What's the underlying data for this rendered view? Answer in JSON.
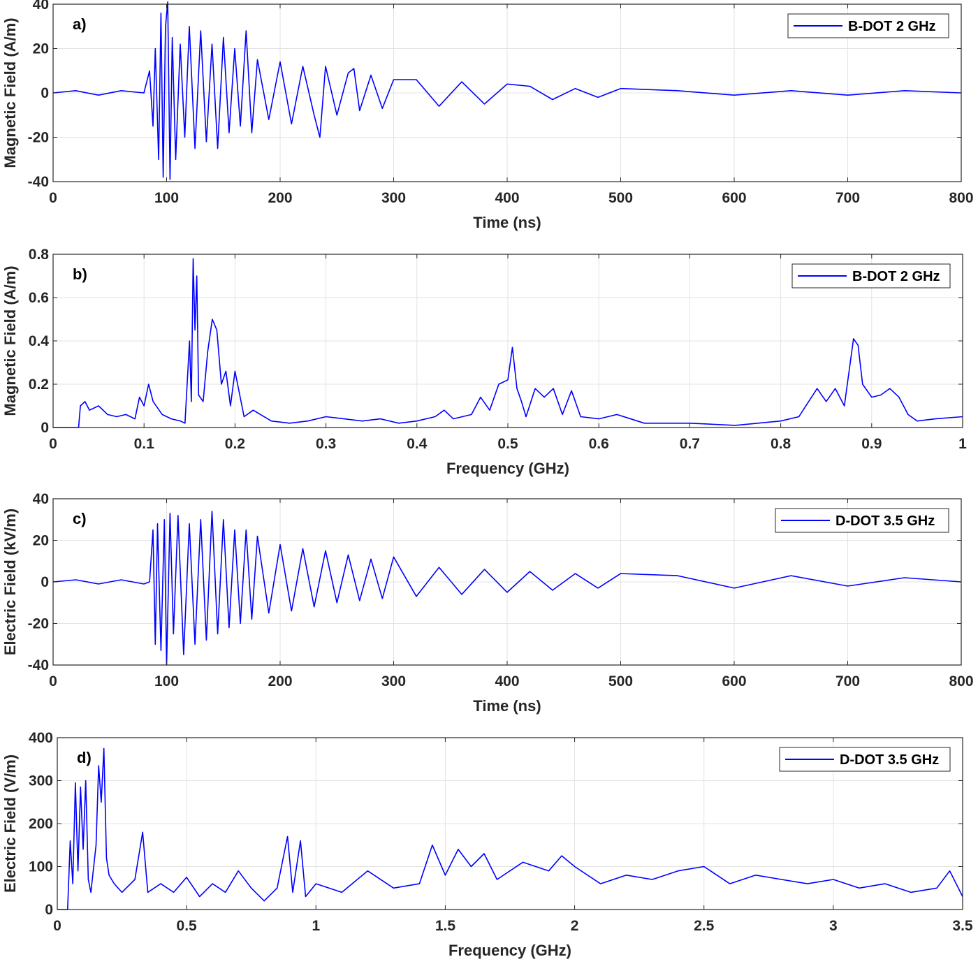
{
  "chart_data": [
    {
      "type": "line",
      "panel_label": "a)",
      "xlabel": "Time (ns)",
      "ylabel": "Magnetic Field (A/m)",
      "xlim": [
        0,
        800
      ],
      "ylim": [
        -40,
        40
      ],
      "xticks": [
        0,
        100,
        200,
        300,
        400,
        500,
        600,
        700,
        800
      ],
      "yticks": [
        -40,
        -20,
        0,
        20,
        40
      ],
      "xtick_labels": [
        "0",
        "100",
        "200",
        "300",
        "400",
        "500",
        "600",
        "700",
        "800"
      ],
      "ytick_labels": [
        "-40",
        "-20",
        "0",
        "20",
        "40"
      ],
      "grid": true,
      "legend_position": "top-right",
      "series": [
        {
          "name": "B-DOT 2 GHz",
          "color": "#0000ff",
          "x": [
            0,
            20,
            40,
            60,
            80,
            85,
            88,
            90,
            93,
            95,
            97,
            99,
            101,
            103,
            105,
            108,
            112,
            116,
            120,
            125,
            130,
            135,
            140,
            145,
            150,
            155,
            160,
            165,
            170,
            175,
            180,
            190,
            200,
            210,
            220,
            230,
            235,
            240,
            250,
            260,
            265,
            270,
            280,
            290,
            300,
            320,
            340,
            360,
            380,
            400,
            420,
            440,
            460,
            480,
            500,
            550,
            600,
            650,
            700,
            750,
            800
          ],
          "y": [
            0,
            1,
            -1,
            1,
            0,
            10,
            -15,
            20,
            -30,
            36,
            -38,
            30,
            41,
            -39,
            25,
            -30,
            22,
            -20,
            30,
            -25,
            28,
            -22,
            22,
            -25,
            25,
            -18,
            20,
            -15,
            28,
            -18,
            15,
            -12,
            14,
            -14,
            12,
            -10,
            -20,
            12,
            -10,
            9,
            11,
            -8,
            8,
            -7,
            6,
            6,
            -6,
            5,
            -5,
            4,
            3,
            -3,
            2,
            -2,
            2,
            1,
            -1,
            1,
            -1,
            1,
            0
          ]
        }
      ]
    },
    {
      "type": "line",
      "panel_label": "b)",
      "xlabel": "Frequency (GHz)",
      "ylabel": "Magnetic Field (A/m)",
      "xlim": [
        0,
        1
      ],
      "ylim": [
        0,
        0.8
      ],
      "xticks": [
        0,
        0.1,
        0.2,
        0.3,
        0.4,
        0.5,
        0.6,
        0.7,
        0.8,
        0.9,
        1
      ],
      "yticks": [
        0,
        0.2,
        0.4,
        0.6,
        0.8
      ],
      "xtick_labels": [
        "0",
        "0.1",
        "0.2",
        "0.3",
        "0.4",
        "0.5",
        "0.6",
        "0.7",
        "0.8",
        "0.9",
        "1"
      ],
      "ytick_labels": [
        "0",
        "0.2",
        "0.4",
        "0.6",
        "0.8"
      ],
      "grid": true,
      "legend_position": "top-right",
      "series": [
        {
          "name": "B-DOT 2 GHz",
          "color": "#0000ff",
          "x": [
            0,
            0.028,
            0.03,
            0.035,
            0.04,
            0.05,
            0.06,
            0.07,
            0.08,
            0.09,
            0.095,
            0.1,
            0.105,
            0.11,
            0.12,
            0.13,
            0.14,
            0.145,
            0.15,
            0.152,
            0.154,
            0.156,
            0.158,
            0.16,
            0.165,
            0.17,
            0.175,
            0.18,
            0.185,
            0.19,
            0.195,
            0.2,
            0.21,
            0.22,
            0.24,
            0.26,
            0.28,
            0.3,
            0.32,
            0.34,
            0.36,
            0.38,
            0.4,
            0.42,
            0.43,
            0.44,
            0.46,
            0.47,
            0.48,
            0.49,
            0.5,
            0.505,
            0.51,
            0.515,
            0.52,
            0.53,
            0.54,
            0.55,
            0.56,
            0.57,
            0.58,
            0.6,
            0.62,
            0.65,
            0.7,
            0.75,
            0.8,
            0.82,
            0.84,
            0.85,
            0.86,
            0.87,
            0.88,
            0.885,
            0.89,
            0.9,
            0.91,
            0.92,
            0.93,
            0.94,
            0.95,
            0.97,
            1.0
          ],
          "y": [
            0,
            0,
            0.1,
            0.12,
            0.08,
            0.1,
            0.06,
            0.05,
            0.06,
            0.04,
            0.14,
            0.1,
            0.2,
            0.12,
            0.06,
            0.04,
            0.03,
            0.02,
            0.4,
            0.12,
            0.78,
            0.45,
            0.7,
            0.15,
            0.12,
            0.35,
            0.5,
            0.45,
            0.2,
            0.26,
            0.1,
            0.26,
            0.05,
            0.08,
            0.03,
            0.02,
            0.03,
            0.05,
            0.04,
            0.03,
            0.04,
            0.02,
            0.03,
            0.05,
            0.08,
            0.04,
            0.06,
            0.14,
            0.08,
            0.2,
            0.22,
            0.37,
            0.18,
            0.12,
            0.05,
            0.18,
            0.14,
            0.18,
            0.06,
            0.17,
            0.05,
            0.04,
            0.06,
            0.02,
            0.02,
            0.01,
            0.03,
            0.05,
            0.18,
            0.12,
            0.18,
            0.1,
            0.41,
            0.38,
            0.2,
            0.14,
            0.15,
            0.18,
            0.14,
            0.06,
            0.03,
            0.04,
            0.05
          ]
        }
      ]
    },
    {
      "type": "line",
      "panel_label": "c)",
      "xlabel": "Time (ns)",
      "ylabel": "Electric Field (kV/m)",
      "xlim": [
        0,
        800
      ],
      "ylim": [
        -40,
        40
      ],
      "xticks": [
        0,
        100,
        200,
        300,
        400,
        500,
        600,
        700,
        800
      ],
      "yticks": [
        -40,
        -20,
        0,
        20,
        40
      ],
      "xtick_labels": [
        "0",
        "100",
        "200",
        "300",
        "400",
        "500",
        "600",
        "700",
        "800"
      ],
      "ytick_labels": [
        "-40",
        "-20",
        "0",
        "20",
        "40"
      ],
      "grid": true,
      "legend_position": "top-right",
      "series": [
        {
          "name": "D-DOT 3.5 GHz",
          "color": "#0000ff",
          "x": [
            0,
            20,
            40,
            60,
            80,
            85,
            88,
            90,
            92,
            95,
            98,
            100,
            103,
            106,
            110,
            115,
            120,
            125,
            130,
            135,
            140,
            145,
            150,
            155,
            160,
            165,
            170,
            175,
            180,
            190,
            200,
            210,
            220,
            230,
            240,
            250,
            260,
            270,
            280,
            290,
            300,
            320,
            340,
            360,
            380,
            400,
            420,
            440,
            460,
            480,
            500,
            550,
            600,
            650,
            700,
            750,
            800
          ],
          "y": [
            0,
            1,
            -1,
            1,
            -1,
            0,
            25,
            -30,
            28,
            -33,
            30,
            -40,
            33,
            -25,
            32,
            -35,
            28,
            -30,
            30,
            -28,
            34,
            -25,
            30,
            -22,
            25,
            -20,
            25,
            -18,
            22,
            -15,
            18,
            -14,
            16,
            -12,
            15,
            -10,
            13,
            -9,
            11,
            -8,
            12,
            -7,
            7,
            -6,
            6,
            -5,
            5,
            -4,
            4,
            -3,
            4,
            3,
            -3,
            3,
            -2,
            2,
            0
          ]
        }
      ]
    },
    {
      "type": "line",
      "panel_label": "d)",
      "xlabel": "Frequency (GHz)",
      "ylabel": "Electric Field (V/m)",
      "xlim": [
        0,
        3.5
      ],
      "ylim": [
        0,
        400
      ],
      "xticks": [
        0,
        0.5,
        1,
        1.5,
        2,
        2.5,
        3,
        3.5
      ],
      "yticks": [
        0,
        100,
        200,
        300,
        400
      ],
      "xtick_labels": [
        "0",
        "0.5",
        "1",
        "1.5",
        "2",
        "2.5",
        "3",
        "3.5"
      ],
      "ytick_labels": [
        "0",
        "100",
        "200",
        "300",
        "400"
      ],
      "grid": true,
      "legend_position": "top-right",
      "series": [
        {
          "name": "D-DOT 3.5 GHz",
          "color": "#0000ff",
          "x": [
            0,
            0.04,
            0.05,
            0.06,
            0.07,
            0.08,
            0.09,
            0.1,
            0.11,
            0.12,
            0.13,
            0.15,
            0.16,
            0.17,
            0.18,
            0.19,
            0.2,
            0.22,
            0.25,
            0.3,
            0.33,
            0.35,
            0.4,
            0.45,
            0.5,
            0.55,
            0.6,
            0.65,
            0.7,
            0.75,
            0.8,
            0.85,
            0.89,
            0.91,
            0.94,
            0.96,
            1.0,
            1.1,
            1.2,
            1.3,
            1.4,
            1.45,
            1.5,
            1.55,
            1.6,
            1.65,
            1.7,
            1.8,
            1.9,
            1.95,
            2.0,
            2.1,
            2.2,
            2.3,
            2.4,
            2.5,
            2.6,
            2.7,
            2.8,
            2.9,
            3.0,
            3.1,
            3.2,
            3.3,
            3.4,
            3.45,
            3.5
          ],
          "y": [
            0,
            0,
            160,
            60,
            295,
            90,
            285,
            140,
            300,
            70,
            40,
            150,
            335,
            250,
            375,
            120,
            80,
            60,
            40,
            70,
            180,
            40,
            60,
            40,
            75,
            30,
            60,
            40,
            90,
            50,
            20,
            50,
            170,
            40,
            160,
            30,
            60,
            40,
            90,
            50,
            60,
            150,
            80,
            140,
            100,
            130,
            70,
            110,
            90,
            125,
            100,
            60,
            80,
            70,
            90,
            100,
            60,
            80,
            70,
            60,
            70,
            50,
            60,
            40,
            50,
            90,
            30
          ]
        }
      ]
    }
  ]
}
